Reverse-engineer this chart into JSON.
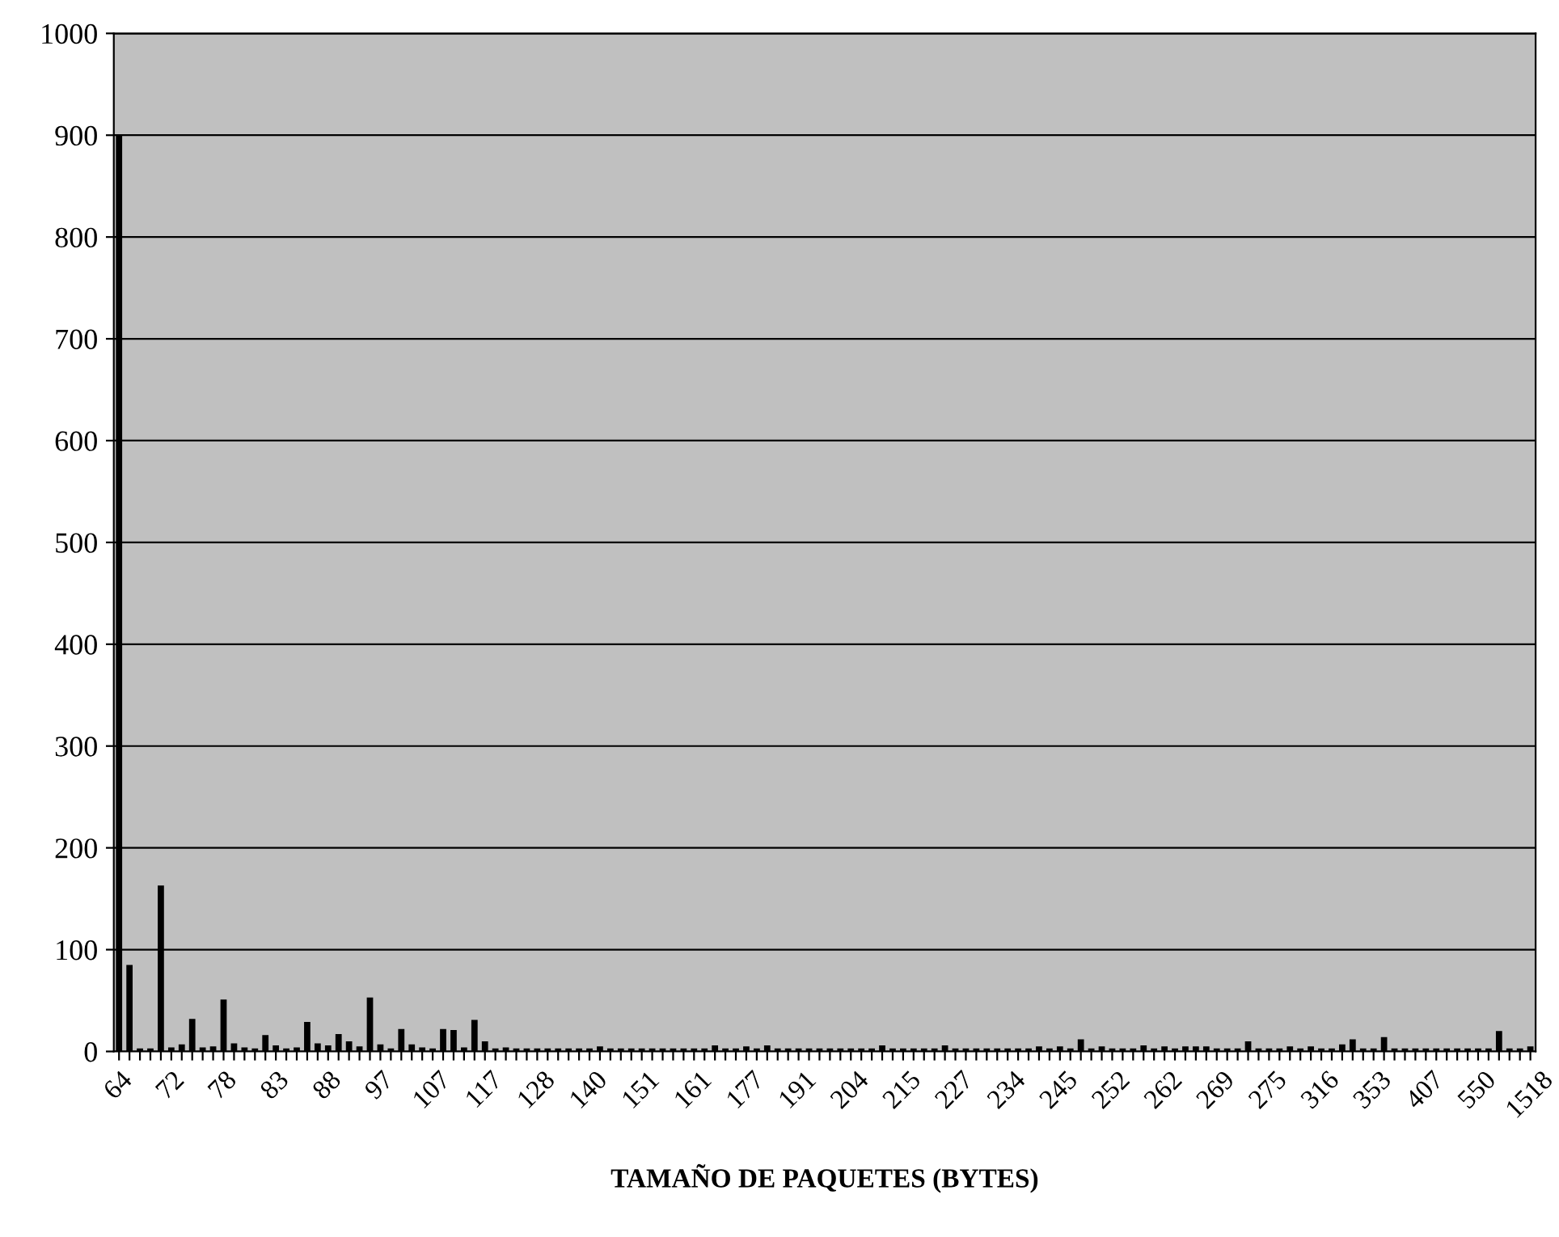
{
  "chart_data": {
    "type": "bar",
    "xlabel": "TAMAÑO DE PAQUETES (BYTES)",
    "categories": [
      "64",
      null,
      null,
      null,
      null,
      "72",
      null,
      null,
      null,
      null,
      "78",
      null,
      null,
      null,
      null,
      "83",
      null,
      null,
      null,
      null,
      "88",
      null,
      null,
      null,
      null,
      "97",
      null,
      null,
      null,
      null,
      "107",
      null,
      null,
      null,
      null,
      "117",
      null,
      null,
      null,
      null,
      "128",
      null,
      null,
      null,
      null,
      "140",
      null,
      null,
      null,
      null,
      "151",
      null,
      null,
      null,
      null,
      "161",
      null,
      null,
      null,
      null,
      "177",
      null,
      null,
      null,
      null,
      "191",
      null,
      null,
      null,
      null,
      "204",
      null,
      null,
      null,
      null,
      "215",
      null,
      null,
      null,
      null,
      "227",
      null,
      null,
      null,
      null,
      "234",
      null,
      null,
      null,
      null,
      "245",
      null,
      null,
      null,
      null,
      "252",
      null,
      null,
      null,
      null,
      "262",
      null,
      null,
      null,
      null,
      "269",
      null,
      null,
      null,
      null,
      "275",
      null,
      null,
      null,
      null,
      "316",
      null,
      null,
      null,
      null,
      "353",
      null,
      null,
      null,
      null,
      "407",
      null,
      null,
      null,
      null,
      "550",
      null,
      null,
      null,
      null,
      "1518"
    ],
    "values": [
      900,
      85,
      3,
      3,
      163,
      4,
      7,
      32,
      4,
      5,
      51,
      8,
      4,
      3,
      16,
      6,
      3,
      4,
      29,
      8,
      6,
      17,
      10,
      5,
      53,
      7,
      3,
      22,
      7,
      4,
      3,
      22,
      21,
      4,
      31,
      10,
      3,
      4,
      3,
      3,
      3,
      3,
      3,
      3,
      3,
      3,
      5,
      3,
      3,
      3,
      3,
      3,
      3,
      3,
      3,
      3,
      3,
      6,
      3,
      3,
      5,
      3,
      6,
      3,
      3,
      3,
      3,
      3,
      3,
      3,
      3,
      3,
      3,
      6,
      3,
      3,
      3,
      3,
      3,
      6,
      3,
      3,
      3,
      3,
      3,
      3,
      3,
      3,
      5,
      3,
      5,
      3,
      12,
      3,
      5,
      3,
      3,
      3,
      6,
      3,
      5,
      3,
      5,
      5,
      5,
      3,
      3,
      3,
      10,
      3,
      3,
      3,
      5,
      3,
      5,
      3,
      3,
      7,
      12,
      3,
      3,
      14,
      3,
      3,
      3,
      3,
      3,
      3,
      3,
      3,
      3,
      3,
      20,
      3,
      3,
      5
    ],
    "color": "#000000",
    "ylim": [
      0,
      1000
    ],
    "yticks": [
      0,
      100,
      200,
      300,
      400,
      500,
      600,
      700,
      800,
      900,
      1000
    ],
    "grid": "y"
  }
}
